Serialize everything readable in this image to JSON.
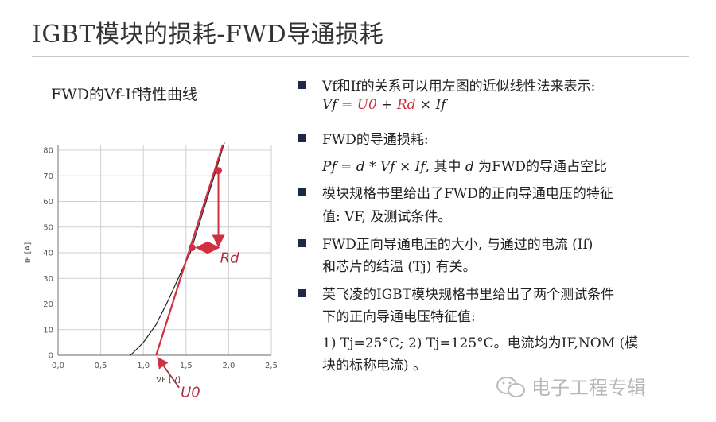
{
  "slide": {
    "title": "IGBT模块的损耗-FWD导通损耗",
    "chart_title": "FWD的Vf-If特性曲线",
    "bullets": [
      {
        "lines": [
          "Vf和If的关系可以用左图的近似线性法来表示:"
        ],
        "formula": {
          "lhs": "Vf = ",
          "u0": "U0",
          "plus": " + ",
          "rd": "Rd",
          "rest": " × If"
        }
      },
      {
        "lines": [
          "FWD的导通损耗:"
        ],
        "formula2": {
          "expr": "Pf = d * Vf  × If",
          "rest": ", 其中",
          "d": " d ",
          "tail": "为FWD的导通占空比"
        }
      },
      {
        "lines": [
          "模块规格书里给出了FWD的正向导通电压的特征",
          "值: VF, 及测试条件。"
        ]
      },
      {
        "lines": [
          "FWD正向导通电压的大小, 与通过的电流 (If)",
          "和芯片的结温 (Tj) 有关。"
        ]
      },
      {
        "lines": [
          "英飞凌的IGBT模块规格书里给出了两个测试条件",
          "下的正向导通电压特征值:"
        ],
        "extra": [
          "1) Tj=25°C; 2) Tj=125°C。电流均为IF,NOM (模",
          "块的标称电流) 。"
        ]
      }
    ],
    "watermark": "电子工程专辑",
    "watermark_icon": "wechat-icon",
    "bullet_color": "#1c2a44",
    "accent_color": "#d03040"
  },
  "chart_data": {
    "type": "line",
    "xlabel": "VF [V]",
    "ylabel": "IF [A]",
    "xlim": [
      0,
      2.5
    ],
    "ylim": [
      0,
      80
    ],
    "grid": true,
    "x_ticks": [
      "0,0",
      "0,5",
      "1,0",
      "1,5",
      "2,0",
      "2,5"
    ],
    "y_ticks": [
      "0",
      "10",
      "20",
      "30",
      "40",
      "50",
      "60",
      "70",
      "80"
    ],
    "series": [
      {
        "role": "measured-curve",
        "color": "#222222",
        "points": [
          [
            0.85,
            0
          ],
          [
            1.0,
            5
          ],
          [
            1.15,
            12
          ],
          [
            1.3,
            22
          ],
          [
            1.45,
            33
          ],
          [
            1.55,
            40
          ],
          [
            1.7,
            56
          ],
          [
            1.85,
            72
          ],
          [
            1.95,
            83
          ]
        ]
      },
      {
        "role": "linear-approximation",
        "color": "#d03040",
        "points": [
          [
            1.15,
            0
          ],
          [
            1.93,
            82
          ]
        ]
      }
    ],
    "markers": [
      [
        1.57,
        42
      ],
      [
        1.88,
        72
      ]
    ],
    "annotations": [
      {
        "text": "Rd",
        "at": [
          1.9,
          38
        ]
      },
      {
        "text": "U0",
        "at": [
          1.4,
          -12
        ],
        "arrow_to": [
          1.17,
          -1
        ]
      }
    ]
  }
}
